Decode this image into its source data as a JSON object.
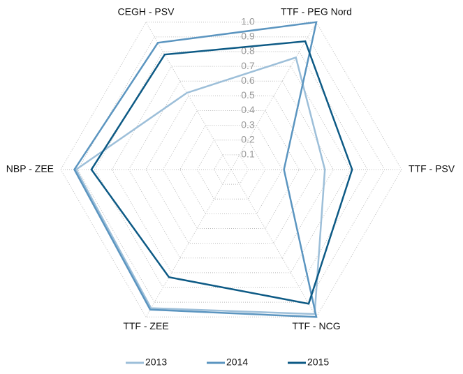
{
  "chart_data": {
    "type": "radar",
    "categories": [
      "TTF - PEG Nord",
      "TTF - PSV",
      "TTF - NCG",
      "TTF - ZEE",
      "NBP - ZEE",
      "CEGH - PSV"
    ],
    "series": [
      {
        "name": "2013",
        "color": "#9dbfd9",
        "values": [
          0.76,
          0.55,
          0.98,
          0.94,
          0.91,
          0.52
        ]
      },
      {
        "name": "2014",
        "color": "#5b95c0",
        "values": [
          1.0,
          0.31,
          1.0,
          0.95,
          0.92,
          0.86
        ]
      },
      {
        "name": "2015",
        "color": "#0d5a85",
        "values": [
          0.87,
          0.71,
          0.91,
          0.73,
          0.82,
          0.78
        ]
      }
    ],
    "rlim": [
      0,
      1
    ],
    "rticks": [
      0.1,
      0.2,
      0.3,
      0.4,
      0.5,
      0.6,
      0.7,
      0.8,
      0.9,
      {
        "value": 1,
        "label": "1.0"
      }
    ],
    "grid": true,
    "legend": "bottom"
  }
}
